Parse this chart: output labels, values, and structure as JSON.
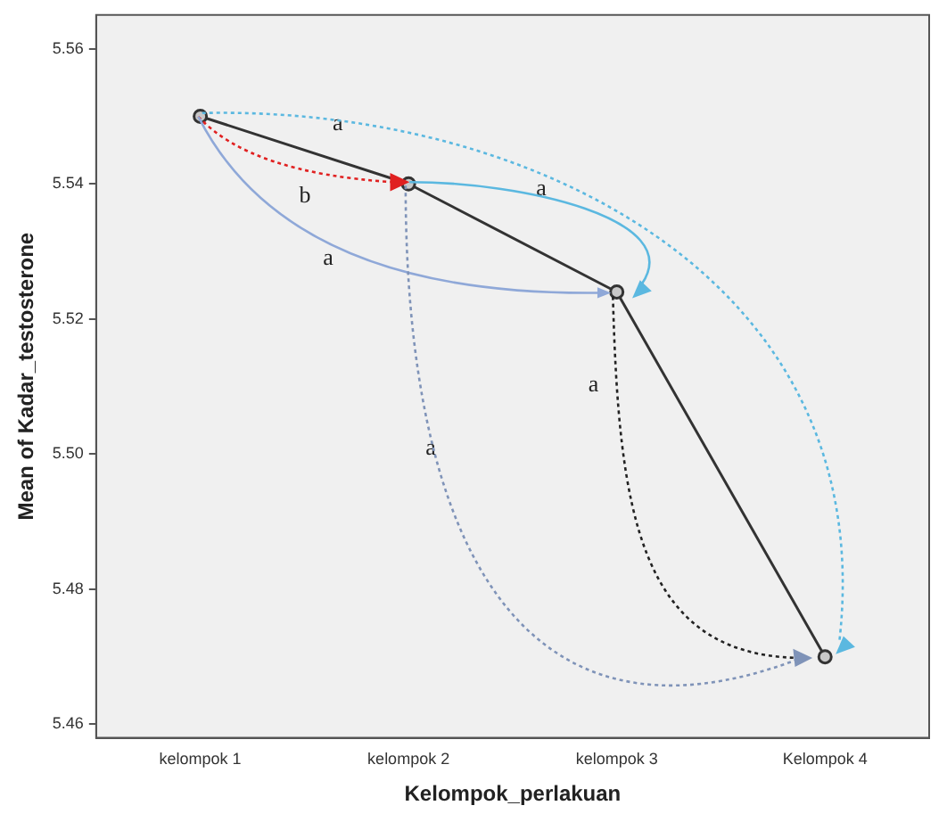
{
  "chart_data": {
    "type": "line",
    "xlabel": "Kelompok_perlakuan",
    "ylabel": "Mean of Kadar_testosterone",
    "categories": [
      "kelompok 1",
      "kelompok 2",
      "kelompok 3",
      "Kelompok 4"
    ],
    "series": [
      {
        "color": "#333333",
        "values": [
          5.55,
          5.54,
          5.524,
          5.47
        ]
      }
    ],
    "ylim": [
      5.458,
      5.565
    ],
    "yticks": [
      5.46,
      5.48,
      {
        "value": 5.5,
        "label": "5.50"
      },
      5.52,
      5.54,
      5.56
    ],
    "marker": "circle",
    "grid": false,
    "legend": false,
    "annotations": [
      "a",
      "b",
      "a",
      "a",
      "a",
      "a"
    ]
  }
}
